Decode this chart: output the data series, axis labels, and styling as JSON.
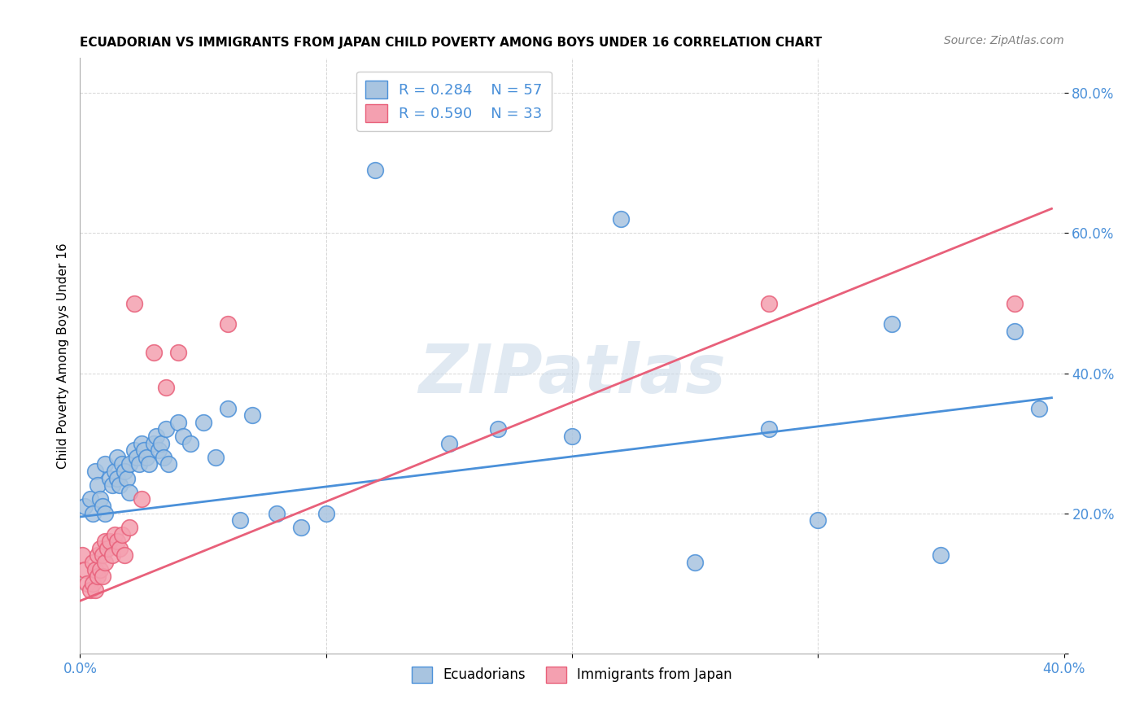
{
  "title": "ECUADORIAN VS IMMIGRANTS FROM JAPAN CHILD POVERTY AMONG BOYS UNDER 16 CORRELATION CHART",
  "source": "Source: ZipAtlas.com",
  "xlabel": "",
  "ylabel": "Child Poverty Among Boys Under 16",
  "xlim": [
    0.0,
    0.4
  ],
  "ylim": [
    0.0,
    0.85
  ],
  "xticks": [
    0.0,
    0.1,
    0.2,
    0.3,
    0.4
  ],
  "xticklabels": [
    "0.0%",
    "",
    "",
    "",
    "40.0%"
  ],
  "yticks": [
    0.0,
    0.2,
    0.4,
    0.6,
    0.8
  ],
  "yticklabels": [
    "",
    "20.0%",
    "40.0%",
    "60.0%",
    "80.0%"
  ],
  "blue_color": "#a8c4e0",
  "pink_color": "#f4a0b0",
  "blue_line_color": "#4a90d9",
  "pink_line_color": "#e8607a",
  "watermark": "ZIPatlas",
  "legend_R_blue": "0.284",
  "legend_N_blue": "57",
  "legend_R_pink": "0.590",
  "legend_N_pink": "33",
  "blue_scatter_x": [
    0.002,
    0.004,
    0.005,
    0.006,
    0.007,
    0.008,
    0.009,
    0.01,
    0.01,
    0.012,
    0.013,
    0.014,
    0.015,
    0.015,
    0.016,
    0.017,
    0.018,
    0.019,
    0.02,
    0.02,
    0.022,
    0.023,
    0.024,
    0.025,
    0.026,
    0.027,
    0.028,
    0.03,
    0.031,
    0.032,
    0.033,
    0.034,
    0.035,
    0.036,
    0.04,
    0.042,
    0.045,
    0.05,
    0.055,
    0.06,
    0.065,
    0.07,
    0.08,
    0.09,
    0.1,
    0.12,
    0.15,
    0.17,
    0.2,
    0.22,
    0.25,
    0.28,
    0.3,
    0.33,
    0.35,
    0.38,
    0.39
  ],
  "blue_scatter_y": [
    0.21,
    0.22,
    0.2,
    0.26,
    0.24,
    0.22,
    0.21,
    0.27,
    0.2,
    0.25,
    0.24,
    0.26,
    0.25,
    0.28,
    0.24,
    0.27,
    0.26,
    0.25,
    0.27,
    0.23,
    0.29,
    0.28,
    0.27,
    0.3,
    0.29,
    0.28,
    0.27,
    0.3,
    0.31,
    0.29,
    0.3,
    0.28,
    0.32,
    0.27,
    0.33,
    0.31,
    0.3,
    0.33,
    0.28,
    0.35,
    0.19,
    0.34,
    0.2,
    0.18,
    0.2,
    0.69,
    0.3,
    0.32,
    0.31,
    0.62,
    0.13,
    0.32,
    0.19,
    0.47,
    0.14,
    0.46,
    0.35
  ],
  "pink_scatter_x": [
    0.001,
    0.002,
    0.003,
    0.004,
    0.005,
    0.005,
    0.006,
    0.006,
    0.007,
    0.007,
    0.008,
    0.008,
    0.009,
    0.009,
    0.01,
    0.01,
    0.011,
    0.012,
    0.013,
    0.014,
    0.015,
    0.016,
    0.017,
    0.018,
    0.02,
    0.022,
    0.025,
    0.03,
    0.035,
    0.04,
    0.06,
    0.28,
    0.38
  ],
  "pink_scatter_y": [
    0.14,
    0.12,
    0.1,
    0.09,
    0.13,
    0.1,
    0.12,
    0.09,
    0.14,
    0.11,
    0.15,
    0.12,
    0.14,
    0.11,
    0.16,
    0.13,
    0.15,
    0.16,
    0.14,
    0.17,
    0.16,
    0.15,
    0.17,
    0.14,
    0.18,
    0.5,
    0.22,
    0.43,
    0.38,
    0.43,
    0.47,
    0.5,
    0.5
  ],
  "blue_trend_x": [
    0.0,
    0.395
  ],
  "blue_trend_y": [
    0.195,
    0.365
  ],
  "pink_trend_x": [
    0.0,
    0.395
  ],
  "pink_trend_y": [
    0.075,
    0.635
  ]
}
